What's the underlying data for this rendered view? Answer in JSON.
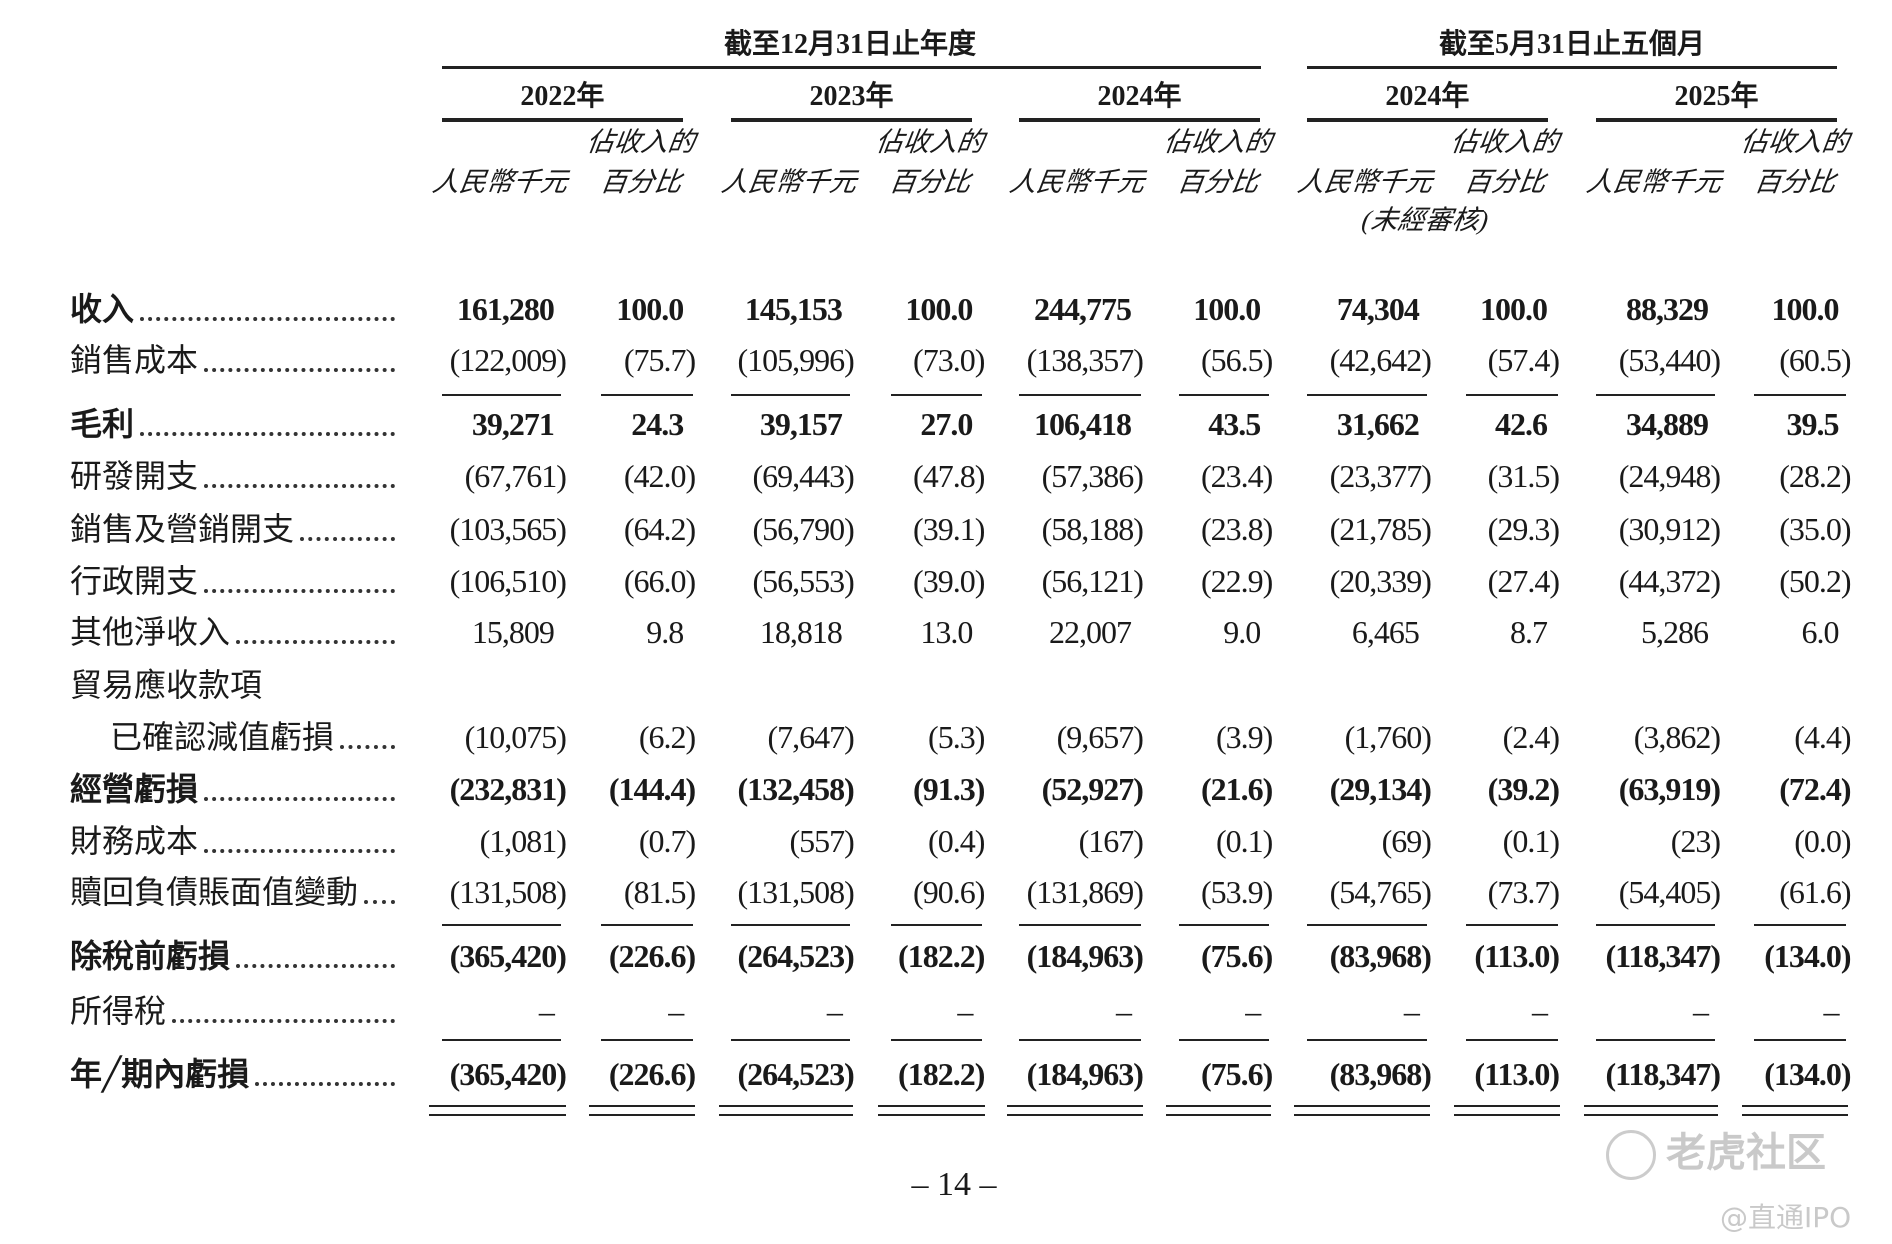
{
  "header": {
    "group1": "截至12月31日止年度",
    "group2": "截至5月31日止五個月",
    "years": [
      "2022年",
      "2023年",
      "2024年",
      "2024年",
      "2025年"
    ],
    "col_amount": "人民幣千元",
    "col_pct_line1": "佔收入的",
    "col_pct_line2": "百分比",
    "unaudited": "(未經審核)"
  },
  "rows": [
    {
      "label": "收入",
      "bold": true,
      "values": [
        "161,280",
        "100.0",
        "145,153",
        "100.0",
        "244,775",
        "100.0",
        "74,304",
        "100.0",
        "88,329",
        "100.0"
      ]
    },
    {
      "label": "銷售成本",
      "bold": false,
      "values": [
        "(122,009)",
        "(75.7)",
        "(105,996)",
        "(73.0)",
        "(138,357)",
        "(56.5)",
        "(42,642)",
        "(57.4)",
        "(53,440)",
        "(60.5)"
      ]
    },
    {
      "label": "毛利",
      "bold": true,
      "values": [
        "39,271",
        "24.3",
        "39,157",
        "27.0",
        "106,418",
        "43.5",
        "31,662",
        "42.6",
        "34,889",
        "39.5"
      ]
    },
    {
      "label": "研發開支",
      "bold": false,
      "values": [
        "(67,761)",
        "(42.0)",
        "(69,443)",
        "(47.8)",
        "(57,386)",
        "(23.4)",
        "(23,377)",
        "(31.5)",
        "(24,948)",
        "(28.2)"
      ]
    },
    {
      "label": "銷售及營銷開支",
      "bold": false,
      "values": [
        "(103,565)",
        "(64.2)",
        "(56,790)",
        "(39.1)",
        "(58,188)",
        "(23.8)",
        "(21,785)",
        "(29.3)",
        "(30,912)",
        "(35.0)"
      ]
    },
    {
      "label": "行政開支",
      "bold": false,
      "values": [
        "(106,510)",
        "(66.0)",
        "(56,553)",
        "(39.0)",
        "(56,121)",
        "(22.9)",
        "(20,339)",
        "(27.4)",
        "(44,372)",
        "(50.2)"
      ]
    },
    {
      "label": "其他淨收入",
      "bold": false,
      "values": [
        "15,809",
        "9.8",
        "18,818",
        "13.0",
        "22,007",
        "9.0",
        "6,465",
        "8.7",
        "5,286",
        "6.0"
      ]
    },
    {
      "label": "貿易應收款項",
      "bold": false,
      "nodots": true,
      "values": []
    },
    {
      "label": "已確認減值虧損",
      "bold": false,
      "indent": true,
      "values": [
        "(10,075)",
        "(6.2)",
        "(7,647)",
        "(5.3)",
        "(9,657)",
        "(3.9)",
        "(1,760)",
        "(2.4)",
        "(3,862)",
        "(4.4)"
      ]
    },
    {
      "label": "經營虧損",
      "bold": true,
      "values": [
        "(232,831)",
        "(144.4)",
        "(132,458)",
        "(91.3)",
        "(52,927)",
        "(21.6)",
        "(29,134)",
        "(39.2)",
        "(63,919)",
        "(72.4)"
      ]
    },
    {
      "label": "財務成本",
      "bold": false,
      "values": [
        "(1,081)",
        "(0.7)",
        "(557)",
        "(0.4)",
        "(167)",
        "(0.1)",
        "(69)",
        "(0.1)",
        "(23)",
        "(0.0)"
      ]
    },
    {
      "label": "贖回負債賬面值變動",
      "bold": false,
      "values": [
        "(131,508)",
        "(81.5)",
        "(131,508)",
        "(90.6)",
        "(131,869)",
        "(53.9)",
        "(54,765)",
        "(73.7)",
        "(54,405)",
        "(61.6)"
      ]
    },
    {
      "label": "除稅前虧損",
      "bold": true,
      "values": [
        "(365,420)",
        "(226.6)",
        "(264,523)",
        "(182.2)",
        "(184,963)",
        "(75.6)",
        "(83,968)",
        "(113.0)",
        "(118,347)",
        "(134.0)"
      ]
    },
    {
      "label": "所得稅",
      "bold": false,
      "values": [
        "–",
        "–",
        "–",
        "–",
        "–",
        "–",
        "–",
        "–",
        "–",
        "–"
      ]
    },
    {
      "label": "年╱期內虧損",
      "bold": true,
      "values": [
        "(365,420)",
        "(226.6)",
        "(264,523)",
        "(182.2)",
        "(184,963)",
        "(75.6)",
        "(83,968)",
        "(113.0)",
        "(118,347)",
        "(134.0)"
      ]
    }
  ],
  "page_number": "– 14 –",
  "watermark": {
    "brand": "老虎社区",
    "handle": "@直通IPO"
  }
}
